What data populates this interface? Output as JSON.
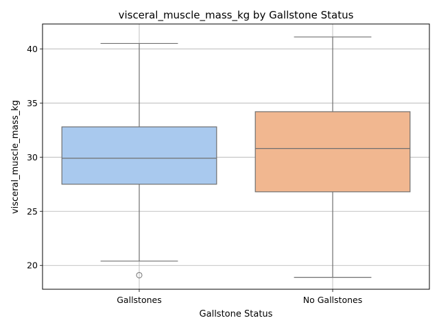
{
  "chart_data": {
    "type": "boxplot",
    "title": "visceral_muscle_mass_kg by Gallstone Status",
    "xlabel": "Gallstone Status",
    "ylabel": "visceral_muscle_mass_kg",
    "ylim": [
      17.8,
      42.3
    ],
    "yticks": [
      20,
      25,
      30,
      35,
      40
    ],
    "grid": true,
    "categories": [
      "Gallstones",
      "No Gallstones"
    ],
    "boxes": [
      {
        "category": "Gallstones",
        "whisker_low": 20.4,
        "q1": 27.5,
        "median": 29.9,
        "q3": 32.8,
        "whisker_high": 40.5,
        "outliers": [
          19.1
        ],
        "color": "#a9c9ee"
      },
      {
        "category": "No Gallstones",
        "whisker_low": 18.9,
        "q1": 26.8,
        "median": 30.8,
        "q3": 34.2,
        "whisker_high": 41.1,
        "outliers": [],
        "color": "#f1b790"
      }
    ]
  }
}
